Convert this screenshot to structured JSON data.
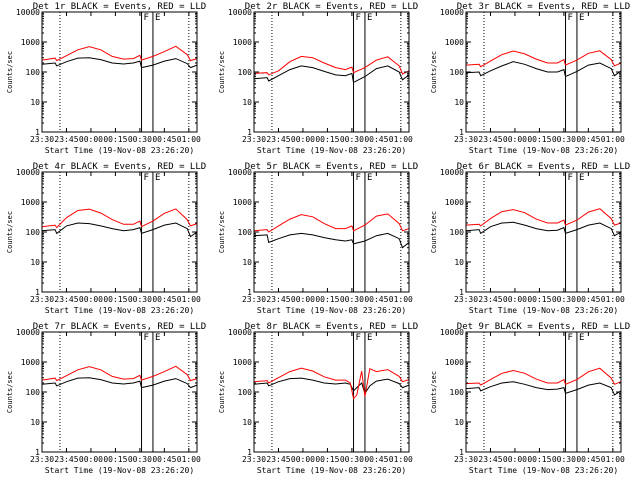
{
  "chart_data": {
    "type": "line",
    "x_unit": "time (HH:MM)",
    "y_scale": "log",
    "xlim": [
      "23:30",
      "01:05"
    ],
    "ylim": [
      1,
      10000
    ],
    "x_tick_labels": [
      "23:30",
      "23:45",
      "00:00",
      "00:15",
      "00:30",
      "00:45",
      "01:00"
    ],
    "y_tick_labels": [
      "1",
      "10",
      "100",
      "1000",
      "10000"
    ],
    "xlabel": "Start Time (19-Nov-08 23:26:20)",
    "ylabel": "Counts/sec",
    "markers": [
      {
        "time": "23:41",
        "style": "dotted",
        "label": ""
      },
      {
        "time": "00:31",
        "style": "solid",
        "label": "F"
      },
      {
        "time": "00:38",
        "style": "solid",
        "label": "E"
      },
      {
        "time": "01:00",
        "style": "dotted",
        "label": ""
      }
    ],
    "panels": [
      {
        "title": "Det 1r BLACK = Events, RED = LLD",
        "series": [
          {
            "color": "#000000",
            "x": [
              "23:30",
              "23:38",
              "23:39",
              "23:45",
              "23:52",
              "23:59",
              "00:06",
              "00:13",
              "00:20",
              "00:26",
              "00:30",
              "00:31",
              "00:38",
              "00:45",
              "00:52",
              "00:59",
              "01:01",
              "01:05"
            ],
            "y": [
              180,
              200,
              160,
              220,
              290,
              300,
              260,
              200,
              185,
              200,
              230,
              140,
              170,
              230,
              280,
              190,
              140,
              170
            ]
          },
          {
            "color": "#ff0000",
            "x": [
              "23:30",
              "23:38",
              "23:39",
              "23:45",
              "23:52",
              "23:59",
              "00:06",
              "00:13",
              "00:20",
              "00:26",
              "00:30",
              "00:31",
              "00:38",
              "00:45",
              "00:52",
              "00:59",
              "01:01",
              "01:05"
            ],
            "y": [
              250,
              290,
              240,
              350,
              550,
              700,
              550,
              330,
              270,
              280,
              360,
              250,
              330,
              480,
              720,
              380,
              240,
              280
            ]
          }
        ]
      },
      {
        "title": "Det 2r BLACK = Events, RED = LLD",
        "series": [
          {
            "color": "#000000",
            "x": [
              "23:30",
              "23:38",
              "23:39",
              "23:45",
              "23:52",
              "23:59",
              "00:06",
              "00:13",
              "00:20",
              "00:26",
              "00:30",
              "00:31",
              "00:38",
              "00:45",
              "00:52",
              "00:59",
              "01:01",
              "01:05"
            ],
            "y": [
              60,
              65,
              50,
              75,
              120,
              160,
              140,
              105,
              80,
              75,
              90,
              45,
              70,
              130,
              160,
              100,
              55,
              80
            ]
          },
          {
            "color": "#ff0000",
            "x": [
              "23:30",
              "23:38",
              "23:39",
              "23:45",
              "23:52",
              "23:59",
              "00:06",
              "00:13",
              "00:20",
              "00:26",
              "00:30",
              "00:31",
              "00:38",
              "00:45",
              "00:52",
              "00:59",
              "01:01",
              "01:05"
            ],
            "y": [
              90,
              95,
              80,
              110,
              220,
              330,
              300,
              200,
              140,
              120,
              145,
              95,
              140,
              250,
              320,
              160,
              85,
              110
            ]
          }
        ]
      },
      {
        "title": "Det 3r BLACK = Events, RED = LLD",
        "series": [
          {
            "color": "#000000",
            "x": [
              "23:30",
              "23:38",
              "23:39",
              "23:45",
              "23:52",
              "23:59",
              "00:06",
              "00:13",
              "00:20",
              "00:26",
              "00:30",
              "00:31",
              "00:38",
              "00:45",
              "00:52",
              "00:59",
              "01:01",
              "01:05"
            ],
            "y": [
              95,
              100,
              75,
              110,
              160,
              220,
              180,
              130,
              100,
              100,
              120,
              70,
              105,
              170,
              200,
              130,
              75,
              110
            ]
          },
          {
            "color": "#ff0000",
            "x": [
              "23:30",
              "23:38",
              "23:39",
              "23:45",
              "23:52",
              "23:59",
              "00:06",
              "00:13",
              "00:20",
              "00:26",
              "00:30",
              "00:31",
              "00:38",
              "00:45",
              "00:52",
              "00:59",
              "01:01",
              "01:05"
            ],
            "y": [
              170,
              180,
              150,
              230,
              380,
              500,
              400,
              270,
              200,
              200,
              260,
              170,
              250,
              420,
              510,
              260,
              160,
              200
            ]
          }
        ]
      },
      {
        "title": "Det 4r BLACK = Events, RED = LLD",
        "series": [
          {
            "color": "#000000",
            "x": [
              "23:30",
              "23:38",
              "23:39",
              "23:45",
              "23:52",
              "23:59",
              "00:06",
              "00:13",
              "00:20",
              "00:26",
              "00:30",
              "00:31",
              "00:38",
              "00:45",
              "00:52",
              "00:59",
              "01:01",
              "01:05"
            ],
            "y": [
              110,
              120,
              90,
              160,
              200,
              190,
              160,
              130,
              110,
              120,
              140,
              90,
              120,
              170,
              200,
              130,
              70,
              100
            ]
          },
          {
            "color": "#ff0000",
            "x": [
              "23:30",
              "23:38",
              "23:39",
              "23:45",
              "23:52",
              "23:59",
              "00:06",
              "00:13",
              "00:20",
              "00:26",
              "00:30",
              "00:31",
              "00:38",
              "00:45",
              "00:52",
              "00:59",
              "01:01",
              "01:05"
            ],
            "y": [
              150,
              170,
              140,
              300,
              520,
              580,
              430,
              260,
              180,
              180,
              230,
              150,
              230,
              420,
              590,
              260,
              160,
              190
            ]
          }
        ]
      },
      {
        "title": "Det 5r BLACK = Events, RED = LLD",
        "series": [
          {
            "color": "#000000",
            "x": [
              "23:30",
              "23:38",
              "23:39",
              "23:45",
              "23:52",
              "23:59",
              "00:06",
              "00:13",
              "00:20",
              "00:26",
              "00:30",
              "00:31",
              "00:38",
              "00:45",
              "00:52",
              "00:59",
              "01:01",
              "01:05"
            ],
            "y": [
              75,
              80,
              45,
              60,
              80,
              90,
              80,
              65,
              55,
              50,
              55,
              40,
              50,
              75,
              90,
              60,
              30,
              45
            ]
          },
          {
            "color": "#ff0000",
            "x": [
              "23:30",
              "23:38",
              "23:39",
              "23:45",
              "23:52",
              "23:59",
              "00:06",
              "00:13",
              "00:20",
              "00:26",
              "00:30",
              "00:31",
              "00:38",
              "00:45",
              "00:52",
              "00:59",
              "01:01",
              "01:05"
            ],
            "y": [
              110,
              120,
              100,
              160,
              270,
              380,
              320,
              190,
              130,
              130,
              160,
              110,
              170,
              340,
              400,
              190,
              110,
              130
            ]
          }
        ]
      },
      {
        "title": "Det 6r BLACK = Events, RED = LLD",
        "series": [
          {
            "color": "#000000",
            "x": [
              "23:30",
              "23:38",
              "23:39",
              "23:45",
              "23:52",
              "23:59",
              "00:06",
              "00:13",
              "00:20",
              "00:26",
              "00:30",
              "00:31",
              "00:38",
              "00:45",
              "00:52",
              "00:59",
              "01:01",
              "01:05"
            ],
            "y": [
              110,
              120,
              90,
              150,
              200,
              210,
              170,
              130,
              110,
              115,
              140,
              90,
              120,
              170,
              200,
              130,
              75,
              100
            ]
          },
          {
            "color": "#ff0000",
            "x": [
              "23:30",
              "23:38",
              "23:39",
              "23:45",
              "23:52",
              "23:59",
              "00:06",
              "00:13",
              "00:20",
              "00:26",
              "00:30",
              "00:31",
              "00:38",
              "00:45",
              "00:52",
              "00:59",
              "01:01",
              "01:05"
            ],
            "y": [
              170,
              180,
              160,
              280,
              480,
              560,
              440,
              270,
              200,
              200,
              250,
              170,
              250,
              460,
              600,
              280,
              170,
              200
            ]
          }
        ]
      },
      {
        "title": "Det 7r BLACK = Events, RED = LLD",
        "series": [
          {
            "color": "#000000",
            "x": [
              "23:30",
              "23:38",
              "23:39",
              "23:45",
              "23:52",
              "23:59",
              "00:06",
              "00:13",
              "00:20",
              "00:26",
              "00:30",
              "00:31",
              "00:38",
              "00:45",
              "00:52",
              "00:59",
              "01:01",
              "01:05"
            ],
            "y": [
              180,
              200,
              160,
              220,
              290,
              300,
              260,
              200,
              185,
              200,
              230,
              140,
              170,
              230,
              280,
              190,
              140,
              170
            ]
          },
          {
            "color": "#ff0000",
            "x": [
              "23:30",
              "23:38",
              "23:39",
              "23:45",
              "23:52",
              "23:59",
              "00:06",
              "00:13",
              "00:20",
              "00:26",
              "00:30",
              "00:31",
              "00:38",
              "00:45",
              "00:52",
              "00:59",
              "01:01",
              "01:05"
            ],
            "y": [
              250,
              290,
              240,
              350,
              550,
              700,
              550,
              330,
              270,
              280,
              360,
              250,
              330,
              480,
              720,
              380,
              240,
              280
            ]
          }
        ]
      },
      {
        "title": "Det 8r BLACK = Events, RED = LLD",
        "series": [
          {
            "color": "#000000",
            "x": [
              "23:30",
              "23:38",
              "23:39",
              "23:45",
              "23:52",
              "23:59",
              "00:06",
              "00:13",
              "00:20",
              "00:26",
              "00:29",
              "00:31",
              "00:33",
              "00:36",
              "00:38",
              "00:41",
              "00:45",
              "00:52",
              "00:59",
              "01:01",
              "01:05"
            ],
            "y": [
              180,
              200,
              160,
              220,
              280,
              290,
              250,
              200,
              185,
              200,
              180,
              110,
              140,
              200,
              90,
              160,
              230,
              270,
              190,
              140,
              170
            ]
          },
          {
            "color": "#ff0000",
            "x": [
              "23:30",
              "23:38",
              "23:39",
              "23:45",
              "23:52",
              "23:59",
              "00:06",
              "00:13",
              "00:20",
              "00:26",
              "00:29",
              "00:31",
              "00:33",
              "00:36",
              "00:38",
              "00:41",
              "00:45",
              "00:52",
              "00:59",
              "01:01",
              "01:05"
            ],
            "y": [
              220,
              240,
              200,
              300,
              480,
              620,
              500,
              320,
              250,
              250,
              200,
              60,
              80,
              500,
              70,
              600,
              480,
              560,
              330,
              220,
              260
            ]
          }
        ]
      },
      {
        "title": "Det 9r BLACK = Events, RED = LLD",
        "series": [
          {
            "color": "#000000",
            "x": [
              "23:30",
              "23:38",
              "23:39",
              "23:45",
              "23:52",
              "23:59",
              "00:06",
              "00:13",
              "00:20",
              "00:26",
              "00:30",
              "00:31",
              "00:38",
              "00:45",
              "00:52",
              "00:59",
              "01:01",
              "01:05"
            ],
            "y": [
              130,
              140,
              110,
              150,
              200,
              220,
              180,
              140,
              120,
              125,
              140,
              90,
              120,
              170,
              200,
              140,
              80,
              110
            ]
          },
          {
            "color": "#ff0000",
            "x": [
              "23:30",
              "23:38",
              "23:39",
              "23:45",
              "23:52",
              "23:59",
              "00:06",
              "00:13",
              "00:20",
              "00:26",
              "00:30",
              "00:31",
              "00:38",
              "00:45",
              "00:52",
              "00:59",
              "01:01",
              "01:05"
            ],
            "y": [
              190,
              200,
              170,
              260,
              420,
              520,
              420,
              270,
              200,
              200,
              260,
              180,
              260,
              470,
              620,
              290,
              180,
              220
            ]
          }
        ]
      }
    ]
  }
}
